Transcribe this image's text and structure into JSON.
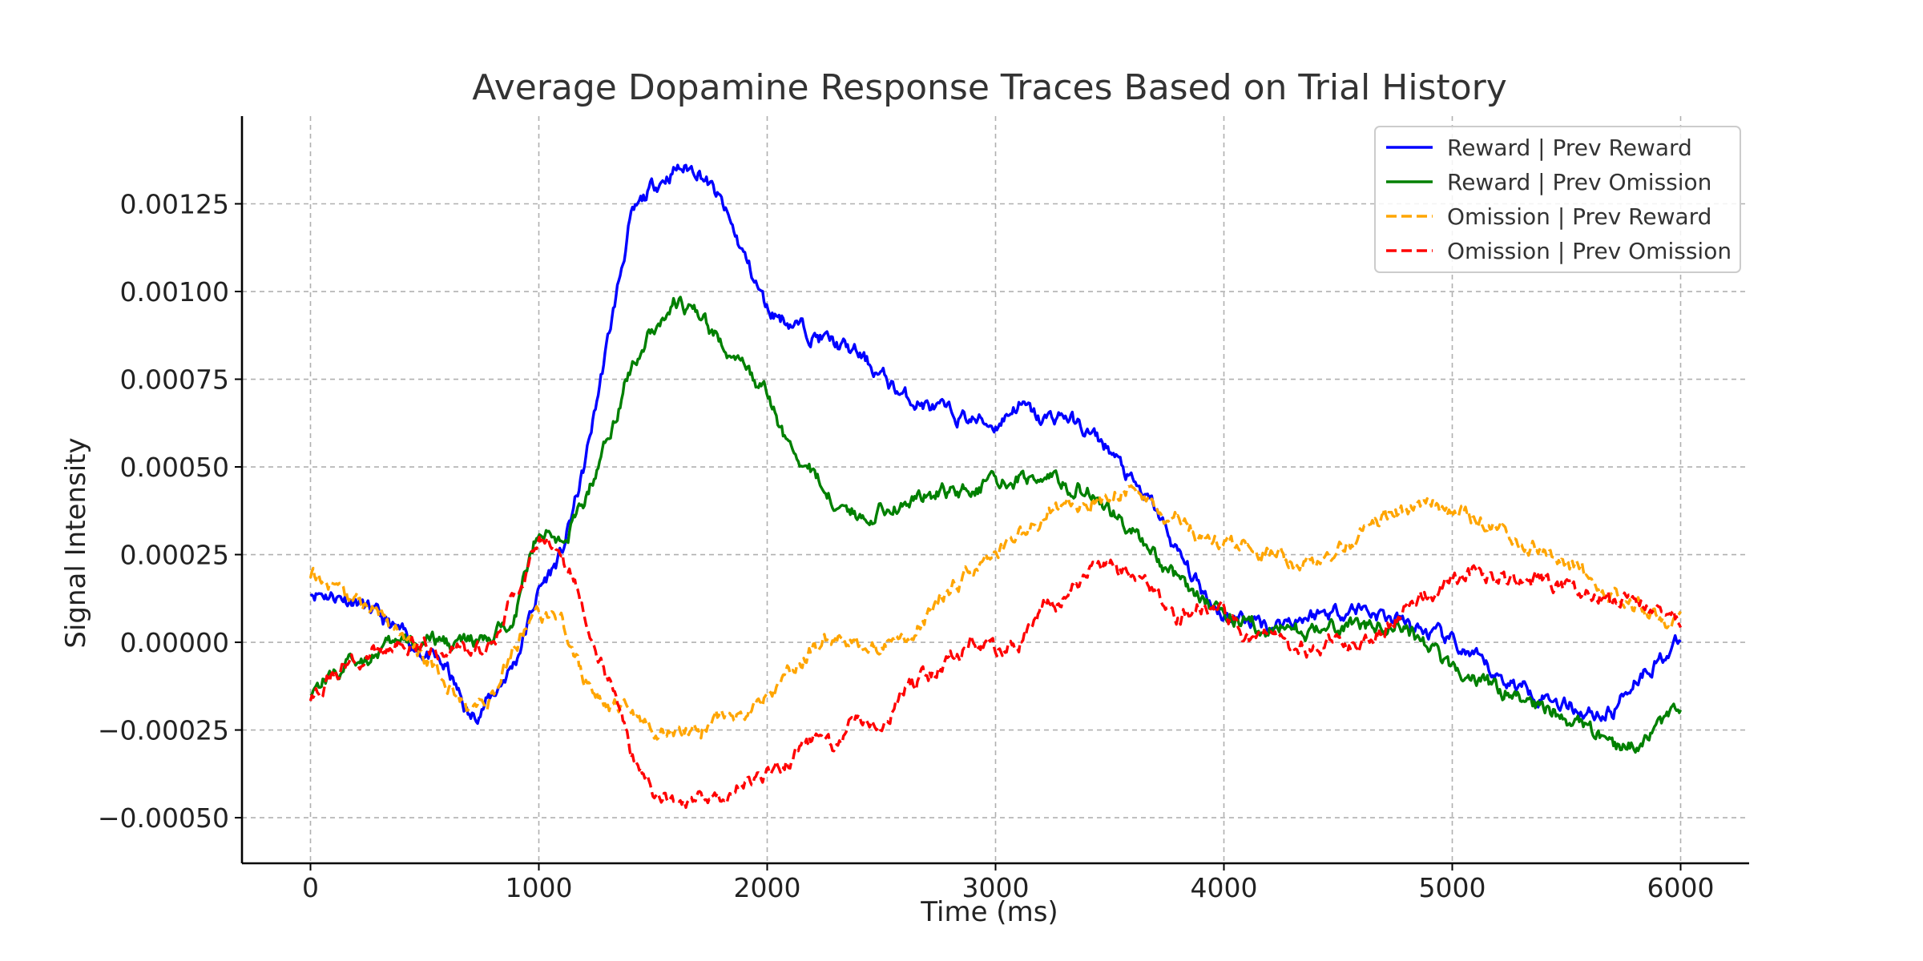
{
  "chart_data": {
    "type": "line",
    "title": "Average Dopamine Response Traces Based on Trial History",
    "xlabel": "Time (ms)",
    "ylabel": "Signal Intensity",
    "xlim": [
      -300,
      6300
    ],
    "ylim": [
      -0.00063,
      0.0015
    ],
    "xticks": [
      0,
      1000,
      2000,
      3000,
      4000,
      5000,
      6000
    ],
    "xtick_labels": [
      "0",
      "1000",
      "2000",
      "3000",
      "4000",
      "5000",
      "6000"
    ],
    "yticks": [
      0.00125,
      0.001,
      0.00075,
      0.0005,
      0.00025,
      0,
      -0.00025,
      -0.0005
    ],
    "ytick_labels": [
      "0.00125",
      "0.00100",
      "0.00075",
      "0.00050",
      "0.00025",
      "0.00000",
      "−0.00025",
      "−0.00050"
    ],
    "grid": true,
    "legend_position": "top-right",
    "series": [
      {
        "name": "Reward | Prev Reward",
        "color": "#0000ff",
        "dash": "solid",
        "x": [
          0,
          200,
          400,
          600,
          700,
          800,
          900,
          1000,
          1100,
          1200,
          1300,
          1400,
          1500,
          1600,
          1700,
          1800,
          1900,
          2000,
          2200,
          2400,
          2600,
          2800,
          3000,
          3100,
          3200,
          3300,
          3400,
          3500,
          3600,
          3700,
          3800,
          3900,
          4000,
          4200,
          4400,
          4600,
          4800,
          5000,
          5200,
          5400,
          5600,
          5700,
          5800,
          5900,
          6000
        ],
        "y": [
          0.00015,
          0.00012,
          2e-05,
          -8e-05,
          -0.00022,
          -0.00015,
          -5e-05,
          0.00015,
          0.00025,
          0.0005,
          0.00085,
          0.0012,
          0.0013,
          0.00135,
          0.00135,
          0.00125,
          0.0011,
          0.00095,
          0.00088,
          0.00082,
          0.0007,
          0.00065,
          0.00062,
          0.00068,
          0.00063,
          0.00065,
          0.0006,
          0.00055,
          0.00045,
          0.00038,
          0.00025,
          0.00015,
          8e-05,
          5e-05,
          8e-05,
          0.0001,
          5e-05,
          0.0,
          -0.0001,
          -0.00015,
          -0.0002,
          -0.0002,
          -0.0001,
          -5e-05,
          0.0
        ]
      },
      {
        "name": "Reward | Prev Omission",
        "color": "#008000",
        "dash": "solid",
        "x": [
          0,
          200,
          400,
          600,
          800,
          900,
          1000,
          1100,
          1200,
          1300,
          1400,
          1500,
          1600,
          1700,
          1800,
          1900,
          2000,
          2100,
          2200,
          2300,
          2400,
          2600,
          2800,
          3000,
          3200,
          3400,
          3600,
          3800,
          4000,
          4200,
          4400,
          4600,
          4800,
          5000,
          5200,
          5400,
          5600,
          5700,
          5800,
          5900,
          6000
        ],
        "y": [
          -0.00013,
          -5e-05,
          0.0,
          0.0,
          0.0,
          0.0001,
          0.00033,
          0.00028,
          0.0004,
          0.00058,
          0.00078,
          0.0009,
          0.00097,
          0.00093,
          0.00085,
          0.00078,
          0.0007,
          0.00055,
          0.00048,
          0.0004,
          0.00036,
          0.0004,
          0.00043,
          0.00045,
          0.00048,
          0.00043,
          0.00032,
          0.00018,
          8e-05,
          4e-05,
          3e-05,
          5e-05,
          4e-05,
          -8e-05,
          -0.00013,
          -0.00018,
          -0.00025,
          -0.0003,
          -0.00028,
          -0.00025,
          -0.0002
        ]
      },
      {
        "name": "Omission | Prev Reward",
        "color": "#ffa500",
        "dash": "dashed",
        "x": [
          0,
          100,
          200,
          300,
          400,
          500,
          600,
          700,
          800,
          900,
          1000,
          1100,
          1200,
          1300,
          1400,
          1500,
          1600,
          1700,
          1800,
          1900,
          2000,
          2100,
          2200,
          2300,
          2400,
          2500,
          2600,
          2700,
          2800,
          2900,
          3000,
          3100,
          3200,
          3300,
          3400,
          3500,
          3600,
          3700,
          3800,
          3900,
          4000,
          4100,
          4200,
          4300,
          4400,
          4500,
          4600,
          4700,
          4800,
          4900,
          5000,
          5100,
          5200,
          5300,
          5400,
          5500,
          5600,
          5700,
          5800,
          5900,
          6000
        ],
        "y": [
          0.0002,
          0.00016,
          0.00012,
          8e-05,
          3e-05,
          -5e-05,
          -0.00012,
          -0.0002,
          -0.00015,
          0.0,
          8e-05,
          5e-05,
          -0.0001,
          -0.00018,
          -0.0002,
          -0.00025,
          -0.00026,
          -0.00025,
          -0.00022,
          -0.0002,
          -0.00015,
          -8e-05,
          -2e-05,
          2e-05,
          0.0,
          -2e-05,
          0.0,
          8e-05,
          0.00015,
          0.0002,
          0.00026,
          0.0003,
          0.00035,
          0.0004,
          0.0004,
          0.00042,
          0.00045,
          0.00038,
          0.00035,
          0.0003,
          0.00028,
          0.00027,
          0.00025,
          0.00022,
          0.00023,
          0.00026,
          0.00032,
          0.00036,
          0.00038,
          0.0004,
          0.00038,
          0.00035,
          0.00032,
          0.0003,
          0.00026,
          0.00022,
          0.00018,
          0.00014,
          0.00011,
          8e-05,
          5e-05
        ]
      },
      {
        "name": "Omission | Prev Omission",
        "color": "#ff0000",
        "dash": "dashed",
        "x": [
          0,
          200,
          400,
          600,
          800,
          900,
          1000,
          1100,
          1200,
          1300,
          1400,
          1500,
          1600,
          1700,
          1800,
          1900,
          2000,
          2100,
          2200,
          2300,
          2400,
          2500,
          2600,
          2700,
          2800,
          2900,
          3000,
          3100,
          3200,
          3300,
          3400,
          3500,
          3600,
          3700,
          3800,
          3900,
          4000,
          4100,
          4200,
          4300,
          4400,
          4500,
          4600,
          4700,
          4800,
          4900,
          5000,
          5100,
          5200,
          5300,
          5400,
          5500,
          5600,
          5700,
          5800,
          5900,
          6000
        ],
        "y": [
          -0.00015,
          -5e-05,
          0.0,
          -2e-05,
          -2e-05,
          0.00015,
          0.00028,
          0.00025,
          0.0001,
          -0.0001,
          -0.0003,
          -0.00042,
          -0.00045,
          -0.00045,
          -0.00043,
          -0.0004,
          -0.00038,
          -0.00033,
          -0.00028,
          -0.0003,
          -0.0002,
          -0.00025,
          -0.00012,
          -0.0001,
          -5e-05,
          0.0,
          -3e-05,
          0.0,
          0.0001,
          0.00012,
          0.0002,
          0.00022,
          0.00018,
          0.00015,
          8e-05,
          0.0001,
          8e-05,
          0.0,
          2e-05,
          -2e-05,
          -2e-05,
          0.0,
          0.0,
          3e-05,
          0.0001,
          0.00014,
          0.00018,
          0.0002,
          0.00018,
          0.00016,
          0.00018,
          0.00016,
          0.00015,
          0.00012,
          0.0001,
          0.0001,
          5e-05
        ]
      }
    ]
  }
}
